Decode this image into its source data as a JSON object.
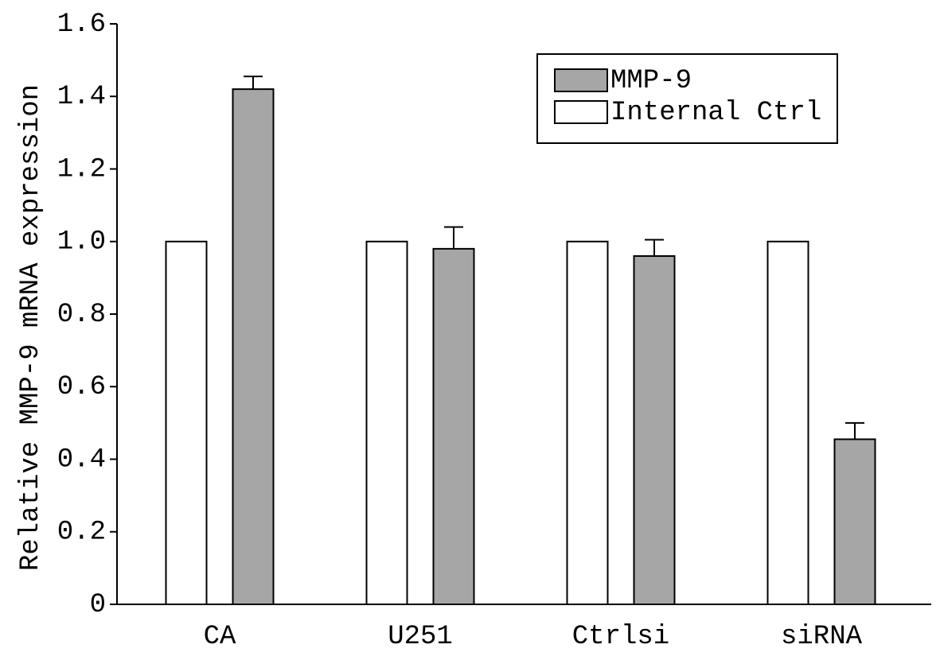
{
  "chart_data": {
    "type": "bar",
    "y_label": "Relative MMP-9 mRNA expression",
    "categories": [
      "CA",
      "U251",
      "Ctrlsi",
      "siRNA"
    ],
    "series": [
      {
        "name": "MMP-9",
        "color": "#a6a6a6",
        "values": [
          1.42,
          0.98,
          0.96,
          0.455
        ],
        "errors": [
          0.035,
          0.06,
          0.045,
          0.045
        ]
      },
      {
        "name": "Internal Ctrl",
        "color": "#ffffff",
        "values": [
          1,
          1,
          1,
          1
        ]
      }
    ],
    "ylim": [
      0,
      1.6
    ],
    "yticks": [
      0,
      0.2,
      0.4,
      0.6,
      0.8,
      {
        "value": 1,
        "label": "1.0"
      },
      1.2,
      1.4,
      1.6
    ],
    "legend": "upper right"
  }
}
